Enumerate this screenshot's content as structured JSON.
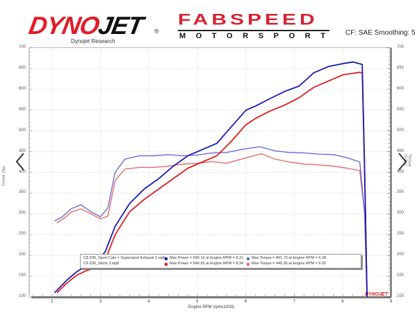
{
  "header": {
    "dynojet_logo": {
      "part1": "DYNO",
      "part2": "JET",
      "reg": "®",
      "subtitle": "Dynojet Research"
    },
    "fabspeed_logo": {
      "title": "FABSPEED",
      "subtitle": "MOTORSPORT"
    },
    "settings_text": "CF: SAE Smoothing: 5"
  },
  "navigation": {
    "prev_arrow": "chevron-left",
    "next_arrow": "chevron-right"
  },
  "colors": {
    "power_mod": "#1a1ab4",
    "power_stock": "#d81e1e",
    "torque_mod": "#6a6ad8",
    "torque_stock": "#e86a6a",
    "grid": "#e6e6e6"
  },
  "legend": {
    "rows": [
      {
        "file": "C8 Z06_Sport Cats + Supersport Exhaust 2.wp8",
        "power": "Max Power = 666.13 at Engine RPM = 8.21",
        "torque": "Max Torque = 461.73 at Engine RPM = 6.28",
        "power_color": "#1a1ab4",
        "torque_color": "#6a6ad8"
      },
      {
        "file": "C8 Z06_Stock 3.wp8",
        "power": "Max Power = 640.65 at Engine RPM = 8.34",
        "torque": "Max Torque = 445.36 at Engine RPM = 6.32",
        "power_color": "#d81e1e",
        "torque_color": "#e86a6a"
      }
    ]
  },
  "axes": {
    "xlabel": "Engine RPM (rpmx1000)",
    "ylabel_left": "Power (hp)",
    "ylabel_right": "Torque (ft-lbs)",
    "x_ticks": [
      "2",
      "3",
      "4",
      "5",
      "6",
      "7",
      "8",
      "9"
    ],
    "y_ticks": [
      "700",
      "650",
      "600",
      "550",
      "500",
      "450",
      "400",
      "350",
      "300",
      "250",
      "200",
      "150",
      "100"
    ],
    "watermark": "DYNOJET"
  },
  "chart_data": {
    "type": "line",
    "title": "",
    "xlabel": "Engine RPM (rpmx1000)",
    "ylabel": "Power (hp)",
    "ylabel_right": "Torque (ft-lbs)",
    "xlim": [
      1.5,
      9
    ],
    "ylim": [
      100,
      700
    ],
    "grid": true,
    "legend_position": "bottom-inside",
    "series": [
      {
        "name": "C8 Z06_Sport Cats + Supersport Exhaust 2.wp8 — Power",
        "x": [
          2.05,
          2.3,
          2.5,
          2.7,
          2.9,
          3.1,
          3.3,
          3.6,
          3.9,
          4.2,
          4.5,
          4.8,
          5.1,
          5.4,
          5.7,
          6.0,
          6.2,
          6.5,
          6.8,
          7.1,
          7.4,
          7.7,
          8.0,
          8.21,
          8.4,
          8.45,
          8.5
        ],
        "values": [
          110,
          140,
          160,
          175,
          180,
          210,
          270,
          325,
          360,
          385,
          415,
          440,
          455,
          470,
          510,
          550,
          560,
          578,
          595,
          608,
          640,
          655,
          662,
          666,
          660,
          400,
          100
        ]
      },
      {
        "name": "C8 Z06_Stock 3.wp8 — Power",
        "x": [
          2.1,
          2.3,
          2.5,
          2.7,
          2.9,
          3.1,
          3.3,
          3.6,
          3.9,
          4.2,
          4.5,
          4.8,
          5.1,
          5.4,
          5.7,
          6.0,
          6.2,
          6.5,
          6.8,
          7.1,
          7.4,
          7.7,
          8.0,
          8.34,
          8.4,
          8.45,
          8.5
        ],
        "values": [
          110,
          133,
          152,
          163,
          170,
          190,
          250,
          305,
          335,
          360,
          385,
          410,
          425,
          440,
          475,
          515,
          530,
          548,
          562,
          580,
          605,
          620,
          635,
          641,
          640,
          400,
          100
        ]
      },
      {
        "name": "C8 Z06_Sport Cats + Supersport Exhaust 2.wp8 — Torque",
        "x": [
          2.05,
          2.2,
          2.4,
          2.6,
          2.8,
          3.0,
          3.15,
          3.3,
          3.5,
          3.8,
          4.1,
          4.4,
          4.7,
          5.0,
          5.3,
          5.6,
          5.9,
          6.28,
          6.6,
          6.9,
          7.2,
          7.5,
          7.8,
          8.1,
          8.35,
          8.45,
          8.5
        ],
        "values": [
          283,
          292,
          313,
          322,
          305,
          293,
          315,
          400,
          432,
          440,
          440,
          443,
          440,
          442,
          447,
          448,
          455,
          462,
          452,
          448,
          447,
          444,
          443,
          435,
          425,
          300,
          100
        ]
      },
      {
        "name": "C8 Z06_Stock 3.wp8 — Torque",
        "x": [
          2.1,
          2.25,
          2.4,
          2.6,
          2.8,
          3.0,
          3.15,
          3.3,
          3.5,
          3.8,
          4.1,
          4.4,
          4.7,
          5.0,
          5.3,
          5.6,
          5.9,
          6.32,
          6.6,
          6.9,
          7.2,
          7.5,
          7.8,
          8.1,
          8.35,
          8.45,
          8.5
        ],
        "values": [
          278,
          290,
          305,
          312,
          300,
          288,
          295,
          380,
          408,
          412,
          412,
          415,
          420,
          422,
          426,
          422,
          432,
          445,
          432,
          425,
          420,
          418,
          415,
          410,
          404,
          300,
          100
        ]
      }
    ],
    "annotations": [
      "Max Power = 666.13 at Engine RPM = 8.21",
      "Max Power = 640.65 at Engine RPM = 8.34",
      "Max Torque = 461.73 at Engine RPM = 6.28",
      "Max Torque = 445.36 at Engine RPM = 6.32"
    ]
  }
}
